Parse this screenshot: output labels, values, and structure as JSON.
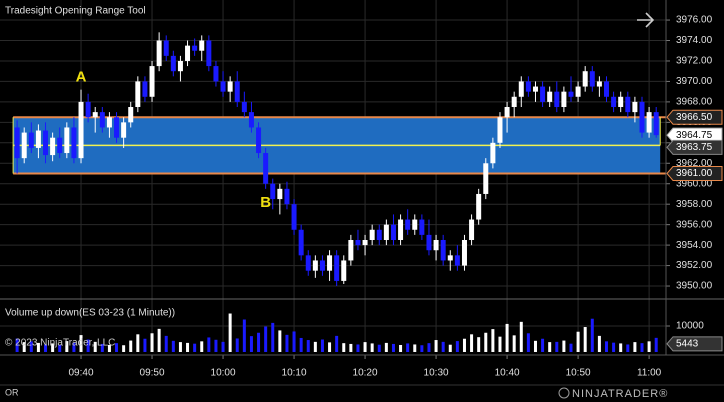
{
  "chart_data": [
    {
      "type": "candlestick",
      "title": "Tradesight Opening Range Tool",
      "x": [
        571,
        572,
        573,
        574,
        575,
        576,
        577,
        578,
        579,
        580,
        581,
        582,
        583,
        584,
        585,
        586,
        587,
        588,
        589,
        590,
        591,
        592,
        593,
        594,
        595,
        596,
        597,
        598,
        599,
        600,
        601,
        602,
        603,
        604,
        605,
        606,
        607,
        608,
        609,
        610,
        611,
        612,
        613,
        614,
        615,
        616,
        617,
        618,
        619,
        620,
        621,
        622,
        623,
        624,
        625,
        626,
        627,
        628,
        629,
        630,
        631,
        632,
        633,
        634,
        635,
        636,
        637,
        638,
        639,
        640,
        641,
        642,
        643,
        644,
        645,
        646,
        647,
        648,
        649,
        650,
        651,
        652,
        653,
        654,
        655,
        656,
        657,
        658,
        659,
        660,
        661
      ],
      "ohlc": [
        [
          3965.5,
          3966.2,
          3961,
          3962.5
        ],
        [
          3962.5,
          3965.5,
          3962,
          3965
        ],
        [
          3965,
          3966,
          3963,
          3963.5
        ],
        [
          3963.5,
          3965.8,
          3962.5,
          3965.2
        ],
        [
          3965.2,
          3966,
          3962,
          3962.8
        ],
        [
          3962.8,
          3965,
          3962.2,
          3964.5
        ],
        [
          3964.5,
          3965.5,
          3962.5,
          3963
        ],
        [
          3963,
          3966,
          3962.5,
          3965.5
        ],
        [
          3965.5,
          3966.5,
          3962,
          3962.5
        ],
        [
          3962.5,
          3969.2,
          3962,
          3968
        ],
        [
          3968,
          3968.8,
          3966,
          3966.5
        ],
        [
          3966.5,
          3967.5,
          3965,
          3967
        ],
        [
          3967,
          3967.5,
          3965,
          3965.5
        ],
        [
          3965.5,
          3967,
          3964.5,
          3966.5
        ],
        [
          3966.5,
          3967,
          3964,
          3964.5
        ],
        [
          3964.5,
          3966.5,
          3963.5,
          3966
        ],
        [
          3966,
          3968,
          3965.5,
          3967.5
        ],
        [
          3967.5,
          3970.5,
          3967,
          3970
        ],
        [
          3970,
          3970.5,
          3968,
          3968.5
        ],
        [
          3968.5,
          3972,
          3968,
          3971.5
        ],
        [
          3971.5,
          3974.8,
          3971,
          3974
        ],
        [
          3974,
          3974.5,
          3972,
          3972.5
        ],
        [
          3972.5,
          3973,
          3970.5,
          3971
        ],
        [
          3971,
          3972.5,
          3970,
          3972
        ],
        [
          3972,
          3974,
          3971.5,
          3973.5
        ],
        [
          3973.5,
          3974.2,
          3972.5,
          3973
        ],
        [
          3973,
          3974.5,
          3972,
          3974
        ],
        [
          3974,
          3974.5,
          3971,
          3971.5
        ],
        [
          3971.5,
          3972,
          3969.5,
          3970
        ],
        [
          3970,
          3971,
          3968.5,
          3969
        ],
        [
          3969,
          3970.5,
          3968,
          3970
        ],
        [
          3970,
          3971,
          3967.5,
          3968
        ],
        [
          3968,
          3969,
          3966.5,
          3967
        ],
        [
          3967,
          3968,
          3965,
          3965.5
        ],
        [
          3965.5,
          3966,
          3962.5,
          3963
        ],
        [
          3963,
          3963.5,
          3959.5,
          3960
        ],
        [
          3960,
          3960.5,
          3957.5,
          3958.5
        ],
        [
          3958.5,
          3960,
          3957,
          3959.5
        ],
        [
          3959.5,
          3960.2,
          3957.5,
          3958
        ],
        [
          3958,
          3958.5,
          3955,
          3955.5
        ],
        [
          3955.5,
          3956,
          3952.5,
          3953
        ],
        [
          3953,
          3953.5,
          3951,
          3951.5
        ],
        [
          3951.5,
          3953,
          3950.8,
          3952.5
        ],
        [
          3952.5,
          3953,
          3951,
          3951.5
        ],
        [
          3951.5,
          3953.5,
          3950.5,
          3953
        ],
        [
          3953,
          3953.5,
          3950,
          3950.5
        ],
        [
          3950.5,
          3953,
          3950.2,
          3952.5
        ],
        [
          3952.5,
          3955,
          3952,
          3954.5
        ],
        [
          3954.5,
          3955.5,
          3953.5,
          3954
        ],
        [
          3954,
          3955,
          3953,
          3954.5
        ],
        [
          3954.5,
          3956,
          3954,
          3955.5
        ],
        [
          3955.5,
          3956,
          3954,
          3954.5
        ],
        [
          3954.5,
          3956.5,
          3954,
          3956
        ],
        [
          3956,
          3957,
          3954,
          3954.5
        ],
        [
          3954.5,
          3957,
          3954,
          3956.5
        ],
        [
          3956.5,
          3957.5,
          3955,
          3955.5
        ],
        [
          3955.5,
          3957,
          3955,
          3956.5
        ],
        [
          3956.5,
          3957,
          3954.5,
          3955
        ],
        [
          3955,
          3956.5,
          3953,
          3953.5
        ],
        [
          3953.5,
          3955,
          3952.5,
          3954.5
        ],
        [
          3954.5,
          3955,
          3952,
          3952.5
        ],
        [
          3952.5,
          3953.5,
          3951.5,
          3953
        ],
        [
          3953,
          3954,
          3951.5,
          3952
        ],
        [
          3952,
          3955,
          3951.5,
          3954.5
        ],
        [
          3954.5,
          3957,
          3954,
          3956.5
        ],
        [
          3956.5,
          3959.5,
          3956,
          3959
        ],
        [
          3959,
          3962.5,
          3958.5,
          3962
        ],
        [
          3962,
          3964.5,
          3961.5,
          3964
        ],
        [
          3964,
          3967,
          3963.5,
          3966.5
        ],
        [
          3966.5,
          3968,
          3965,
          3967.5
        ],
        [
          3967.5,
          3969,
          3966.5,
          3968.5
        ],
        [
          3968.5,
          3970.5,
          3967.5,
          3970
        ],
        [
          3970,
          3970.5,
          3968.5,
          3969
        ],
        [
          3969,
          3970,
          3968,
          3969.5
        ],
        [
          3969.5,
          3970,
          3967.5,
          3968
        ],
        [
          3968,
          3969.5,
          3967.5,
          3969
        ],
        [
          3969,
          3970,
          3967,
          3967.5
        ],
        [
          3967.5,
          3969.5,
          3967,
          3969
        ],
        [
          3969,
          3970.5,
          3968,
          3968.5
        ],
        [
          3968.5,
          3970,
          3968,
          3969.5
        ],
        [
          3969.5,
          3971.5,
          3969,
          3971
        ],
        [
          3971,
          3971.5,
          3969,
          3969.5
        ],
        [
          3969.5,
          3970.5,
          3968.5,
          3970
        ],
        [
          3970,
          3970.5,
          3968,
          3968.5
        ],
        [
          3968.5,
          3969,
          3967,
          3967.5
        ],
        [
          3967.5,
          3969,
          3967,
          3968.5
        ],
        [
          3968.5,
          3969,
          3966.5,
          3967
        ],
        [
          3967,
          3968.5,
          3966,
          3968
        ],
        [
          3968,
          3968.5,
          3964.5,
          3965
        ],
        [
          3965,
          3967.5,
          3964.5,
          3967
        ],
        [
          3967,
          3967.5,
          3964.5,
          3964.75
        ]
      ],
      "up_color": "#ffffff",
      "down_color": "#1a1aff",
      "xlim": [
        568.59,
        662.38
      ],
      "xticks": [
        {
          "value": 580,
          "label": "09:40"
        },
        {
          "value": 590,
          "label": "09:50"
        },
        {
          "value": 600,
          "label": "10:00"
        },
        {
          "value": 610,
          "label": "10:10"
        },
        {
          "value": 620,
          "label": "10:20"
        },
        {
          "value": 630,
          "label": "10:30"
        },
        {
          "value": 640,
          "label": "10:40"
        },
        {
          "value": 650,
          "label": "10:50"
        },
        {
          "value": 660,
          "label": "11:00"
        }
      ],
      "ylim": [
        3948.83,
        3977.96
      ],
      "yticks": [
        {
          "value": 3950,
          "label": "3950.00"
        },
        {
          "value": 3952,
          "label": "3952.00"
        },
        {
          "value": 3954,
          "label": "3954.00"
        },
        {
          "value": 3956,
          "label": "3956.00"
        },
        {
          "value": 3958,
          "label": "3958.00"
        },
        {
          "value": 3960,
          "label": "3960.00"
        },
        {
          "value": 3962,
          "label": "3962.00"
        },
        {
          "value": 3964,
          "label": "3964.00"
        },
        {
          "value": 3966,
          "label": "3966.00"
        },
        {
          "value": 3968,
          "label": "3968.00"
        },
        {
          "value": 3970,
          "label": "3970.00"
        },
        {
          "value": 3972,
          "label": "3972.00"
        },
        {
          "value": 3974,
          "label": "3974.00"
        },
        {
          "value": 3976,
          "label": "3976.00"
        }
      ],
      "grid": true,
      "opening_range": {
        "high": {
          "value": 3966.5,
          "label": "3966.50"
        },
        "mid": {
          "value": 3963.75,
          "label": "3963.75"
        },
        "low": {
          "value": 3961,
          "label": "3961.00"
        },
        "fill": "#1f6cc0",
        "edge_color": "#e8884a",
        "mid_color": "#f2f250"
      },
      "annotations": [
        {
          "text": "A",
          "x": 580,
          "position": "above"
        },
        {
          "text": "B",
          "x": 606,
          "position": "below"
        }
      ],
      "annotation_color": "#f0e010"
    },
    {
      "type": "bar",
      "title": "Volume up down(ES 03-23 (1 Minute))",
      "values": [
        5200,
        3800,
        4100,
        3500,
        2900,
        3300,
        2800,
        4200,
        3600,
        6500,
        4800,
        3900,
        3100,
        2700,
        3400,
        2600,
        4400,
        6800,
        5100,
        7200,
        8900,
        6200,
        4300,
        3800,
        3500,
        3200,
        4100,
        5600,
        4700,
        3900,
        14800,
        5200,
        12500,
        6100,
        7400,
        9800,
        11200,
        8300,
        6600,
        7900,
        5400,
        4600,
        3900,
        4800,
        3700,
        6200,
        3400,
        3100,
        2900,
        3800,
        3300,
        2800,
        3500,
        3100,
        2700,
        3300,
        2900,
        2600,
        3400,
        4600,
        3900,
        2800,
        4200,
        5100,
        6800,
        5700,
        7400,
        8800,
        5900,
        10800,
        6400,
        11600,
        7200,
        4300,
        5100,
        3800,
        3900,
        4400,
        3200,
        7800,
        9600,
        12800,
        6200,
        4100,
        3600,
        3300,
        2900,
        3800,
        3400,
        4100,
        5443
      ],
      "ylim": [
        0,
        20000
      ],
      "yticks": [
        10000
      ]
    }
  ],
  "footer": {
    "copyright": "© 2023 NinjaTrader, LLC",
    "tab": "OR",
    "logo": "NINJATRADER®"
  }
}
